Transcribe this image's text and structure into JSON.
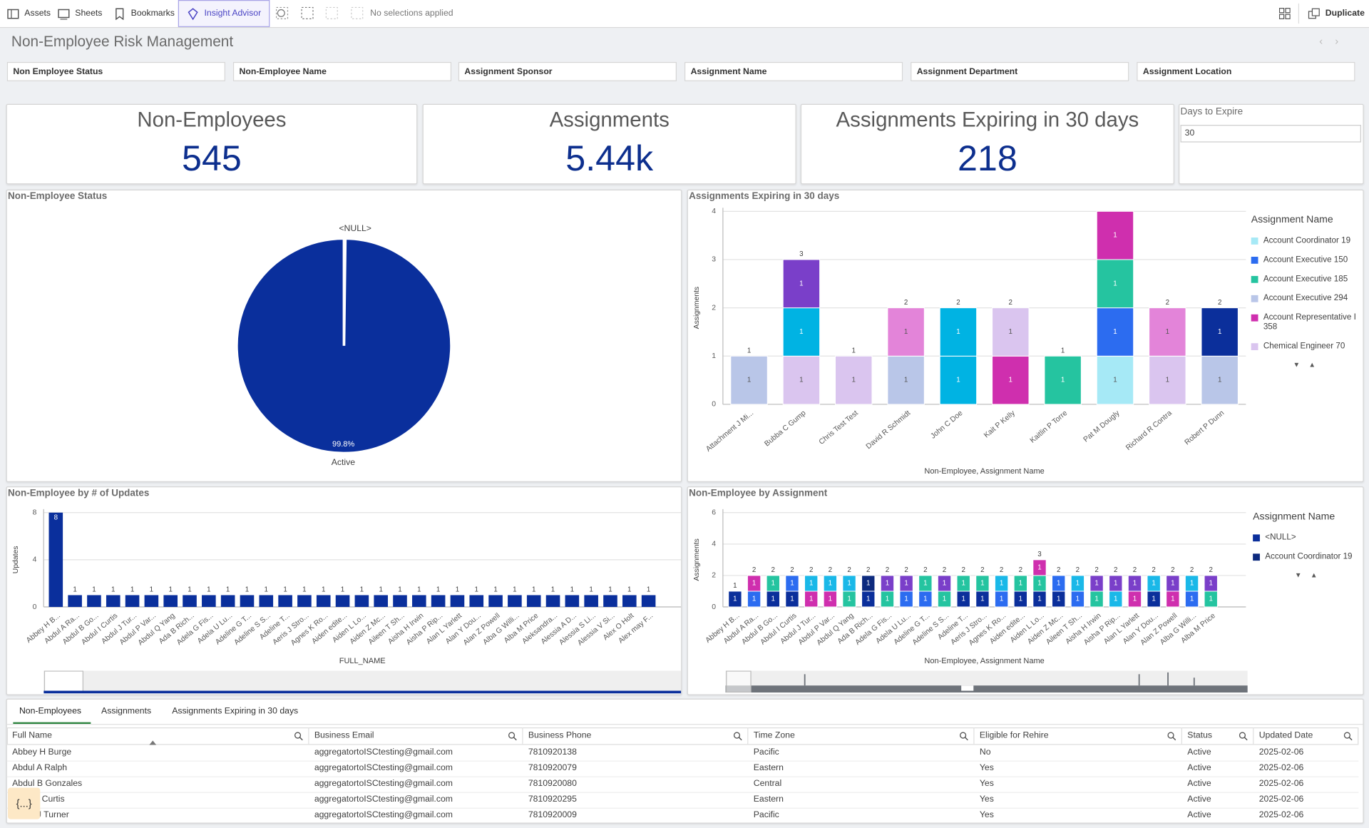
{
  "toolbar": {
    "items": [
      "Assets",
      "Sheets",
      "Bookmarks",
      "Insight Advisor"
    ],
    "selections": "No selections applied",
    "duplicate": "Duplicate"
  },
  "header": {
    "title": "Non-Employee Risk Management"
  },
  "filters": [
    "Non Employee Status",
    "Non-Employee Name",
    "Assignment Sponsor",
    "Assignment Name",
    "Assignment Department",
    "Assignment Location"
  ],
  "kpis": [
    {
      "title": "Non-Employees",
      "value": 545
    },
    {
      "title": "Assignments",
      "value": "5.44k"
    },
    {
      "title": "Assignments Expiring in 30 days",
      "value": 218
    }
  ],
  "days_to_expire": {
    "label": "Days to Expire",
    "value": 30
  },
  "chart_data": [
    {
      "type": "pie",
      "title": "Non-Employee Status",
      "categories": [
        "<NULL>",
        "Active"
      ],
      "values": [
        0.2,
        99.8
      ],
      "value_labels": [
        null,
        "99.8%"
      ],
      "colors": [
        "#0a2f9c",
        "#0a2f9c"
      ]
    },
    {
      "type": "bar",
      "stacked": true,
      "title": "Assignments Expiring in 30 days",
      "x_label": "Non-Employee, Assignment Name",
      "y_label": "Assignments",
      "legend_title": "Assignment Name",
      "legend": "right",
      "grid": true,
      "categories": [
        "Attachment J Mi...",
        "Bubba C Gump",
        "Chris Test Test",
        "David R Schmidt",
        "John C Doe",
        "Kait P Kelly",
        "Kaitlin P Torre",
        "Pat M Dougly",
        "Richard R Contra",
        "Robert P Dunn"
      ],
      "series": [
        {
          "name": "Account Coordinator 19",
          "color": "#a6e9f6",
          "values": [
            null,
            null,
            null,
            null,
            null,
            null,
            null,
            1,
            null,
            null
          ]
        },
        {
          "name": "Account Executive 150",
          "color": "#2c6cf0",
          "values": [
            null,
            null,
            null,
            null,
            null,
            null,
            null,
            1,
            null,
            null
          ]
        },
        {
          "name": "Account Executive 185",
          "color": "#25c4a0",
          "values": [
            null,
            null,
            null,
            null,
            null,
            null,
            1,
            1,
            null,
            null
          ]
        },
        {
          "name": "Account Executive 294",
          "color": "#b9c6e8",
          "values": [
            1,
            null,
            null,
            1,
            null,
            null,
            null,
            null,
            null,
            1
          ]
        },
        {
          "name": "Account Representative I 358",
          "color": "#cf2fae",
          "values": [
            null,
            null,
            null,
            null,
            null,
            1,
            null,
            1,
            null,
            null
          ]
        },
        {
          "name": "Chemical Engineer 70",
          "color": "#dac5ef",
          "values": [
            null,
            1,
            1,
            null,
            null,
            1,
            null,
            null,
            1,
            null
          ]
        },
        {
          "name": null,
          "color": "#00b3e3",
          "values": [
            null,
            1,
            null,
            null,
            1,
            null,
            null,
            null,
            null,
            null
          ]
        },
        {
          "name": null,
          "color": "#7a3fc9",
          "values": [
            null,
            1,
            null,
            null,
            null,
            null,
            null,
            null,
            null,
            null
          ]
        },
        {
          "name": null,
          "color": "#e384d9",
          "values": [
            null,
            null,
            null,
            1,
            null,
            null,
            null,
            null,
            1,
            null
          ]
        },
        {
          "name": null,
          "color": "#0b2f9b",
          "values": [
            null,
            null,
            null,
            null,
            null,
            null,
            null,
            null,
            null,
            1
          ]
        },
        {
          "name": null,
          "color": "#00b3e3",
          "values": [
            null,
            null,
            null,
            null,
            1,
            null,
            null,
            null,
            null,
            null
          ]
        }
      ],
      "totals": [
        1,
        3,
        1,
        2,
        2,
        2,
        1,
        null,
        2,
        2
      ],
      "ylim": [
        0,
        4
      ],
      "yticks": [
        0,
        1,
        2,
        3,
        4
      ]
    },
    {
      "type": "bar",
      "title": "Non-Employee by # of Updates",
      "x_label": "FULL_NAME",
      "y_label": "Updates",
      "color": "#0a2f9c",
      "grid": true,
      "categories": [
        "Abbey H B...",
        "Abdul A Ra...",
        "Abdul B Go...",
        "Abdul I Curtis",
        "Abdul J Tur...",
        "Abdul P Var...",
        "Abdul Q Yang",
        "Ada B Rich...",
        "Adela G Fis...",
        "Adela U Lu...",
        "Adeline G T...",
        "Adeline S S...",
        "Adeline T...",
        "Aeris J Stro...",
        "Agnes K Ro...",
        "Aiden edite...",
        "Aiden L Lo...",
        "Aiden Z Mc...",
        "Aileen T Sh...",
        "Aisha H Irwin",
        "Aisha P Rip...",
        "Alan L Yarlett",
        "Alan Y Dou...",
        "Alan Z Powell",
        "Alba G Willi...",
        "Alba M Price",
        "Aleksandra...",
        "Alessia A D...",
        "Alessia S Li...",
        "Alessia V Si...",
        "Alex O Holt",
        "Alex may F..."
      ],
      "values": [
        8,
        1,
        1,
        1,
        1,
        1,
        1,
        1,
        1,
        1,
        1,
        1,
        1,
        1,
        1,
        1,
        1,
        1,
        1,
        1,
        1,
        1,
        1,
        1,
        1,
        1,
        1,
        1,
        1,
        1,
        1,
        1
      ],
      "ylim": [
        0,
        8
      ],
      "yticks": [
        0,
        4,
        8
      ]
    },
    {
      "type": "bar",
      "stacked": true,
      "title": "Non-Employee by Assignment",
      "x_label": "Non-Employee, Assignment Name",
      "y_label": "Assignments",
      "legend_title": "Assignment Name",
      "legend": "right",
      "grid": true,
      "categories": [
        "Abbey H B...",
        "Abdul A Ra...",
        "Abdul B Go...",
        "Abdul I Curtis",
        "Abdul J Tur...",
        "Abdul P Var...",
        "Abdul Q Yang",
        "Ada B Rich...",
        "Adela G Fis...",
        "Adela U Lu...",
        "Adeline G T...",
        "Adeline S S...",
        "Adeline T...",
        "Aeris J Stro...",
        "Agnes K Ro...",
        "Aiden edite...",
        "Aiden L Lo...",
        "Aiden Z Mc...",
        "Aileen T Sh...",
        "Aisha H Irwin",
        "Aisha P Rip...",
        "Alan L Yarlett",
        "Alan Y Dou...",
        "Alan Z Powell",
        "Alba G Willi...",
        "Alba M Price"
      ],
      "series": [
        {
          "name": "<NULL>",
          "color": "#0b2f9b",
          "values": [
            1,
            null,
            1,
            1,
            null,
            null,
            null,
            1,
            null,
            null,
            null,
            null,
            1,
            1,
            null,
            1,
            1,
            1,
            null,
            null,
            null,
            null,
            1,
            null,
            null,
            null
          ]
        },
        {
          "name": "Account Coordinator 19",
          "color": "#0d2a7e",
          "values": [
            null,
            null,
            null,
            null,
            null,
            null,
            null,
            1,
            null,
            null,
            null,
            null,
            null,
            null,
            null,
            null,
            null,
            null,
            null,
            null,
            null,
            null,
            null,
            null,
            null,
            null
          ]
        },
        {
          "name": null,
          "color": "#2c6cf0",
          "values": [
            null,
            1,
            null,
            1,
            null,
            null,
            null,
            null,
            null,
            1,
            1,
            null,
            null,
            null,
            1,
            null,
            null,
            1,
            1,
            null,
            null,
            null,
            null,
            null,
            1,
            null
          ]
        },
        {
          "name": null,
          "color": "#25c4a0",
          "values": [
            null,
            null,
            1,
            null,
            null,
            null,
            1,
            null,
            1,
            null,
            1,
            1,
            1,
            1,
            null,
            1,
            1,
            null,
            null,
            1,
            null,
            null,
            null,
            null,
            null,
            1
          ]
        },
        {
          "name": null,
          "color": "#cf2fae",
          "values": [
            null,
            1,
            null,
            null,
            1,
            1,
            null,
            null,
            null,
            null,
            null,
            null,
            null,
            null,
            null,
            null,
            1,
            null,
            null,
            null,
            null,
            1,
            null,
            1,
            null,
            null
          ]
        },
        {
          "name": null,
          "color": "#1ab8e8",
          "values": [
            null,
            null,
            null,
            null,
            1,
            1,
            1,
            null,
            null,
            null,
            null,
            null,
            null,
            null,
            1,
            null,
            null,
            null,
            1,
            null,
            1,
            null,
            1,
            null,
            1,
            null
          ]
        },
        {
          "name": null,
          "color": "#7a3fc9",
          "values": [
            null,
            null,
            null,
            null,
            null,
            null,
            null,
            null,
            1,
            1,
            null,
            1,
            null,
            null,
            null,
            null,
            null,
            null,
            null,
            1,
            1,
            1,
            null,
            1,
            null,
            1
          ]
        }
      ],
      "totals": [
        1,
        2,
        2,
        2,
        2,
        2,
        2,
        2,
        2,
        2,
        2,
        2,
        2,
        2,
        2,
        2,
        3,
        2,
        2,
        2,
        2,
        2,
        2,
        2,
        2,
        2
      ],
      "ylim": [
        0,
        6
      ],
      "yticks": [
        0,
        2,
        4,
        6
      ]
    }
  ],
  "table": {
    "tabs": [
      "Non-Employees",
      "Assignments",
      "Assignments Expiring in 30 days"
    ],
    "columns": [
      "Full Name",
      "Business Email",
      "Business Phone",
      "Time Zone",
      "Eligible for Rehire",
      "Status",
      "Updated Date"
    ],
    "rows": [
      [
        "Abbey H Burge",
        "aggregatortoISCtesting@gmail.com",
        "7810920138",
        "Pacific",
        "No",
        "Active",
        "2025-02-06"
      ],
      [
        "Abdul A Ralph",
        "aggregatortoISCtesting@gmail.com",
        "7810920079",
        "Eastern",
        "Yes",
        "Active",
        "2025-02-06"
      ],
      [
        "Abdul B Gonzales",
        "aggregatortoISCtesting@gmail.com",
        "7810920080",
        "Central",
        "Yes",
        "Active",
        "2025-02-06"
      ],
      [
        "Abdul I Curtis",
        "aggregatortoISCtesting@gmail.com",
        "7810920295",
        "Eastern",
        "Yes",
        "Active",
        "2025-02-06"
      ],
      [
        "Abdul J Turner",
        "aggregatortoISCtesting@gmail.com",
        "7810920009",
        "Pacific",
        "Yes",
        "Active",
        "2025-02-06"
      ]
    ]
  }
}
